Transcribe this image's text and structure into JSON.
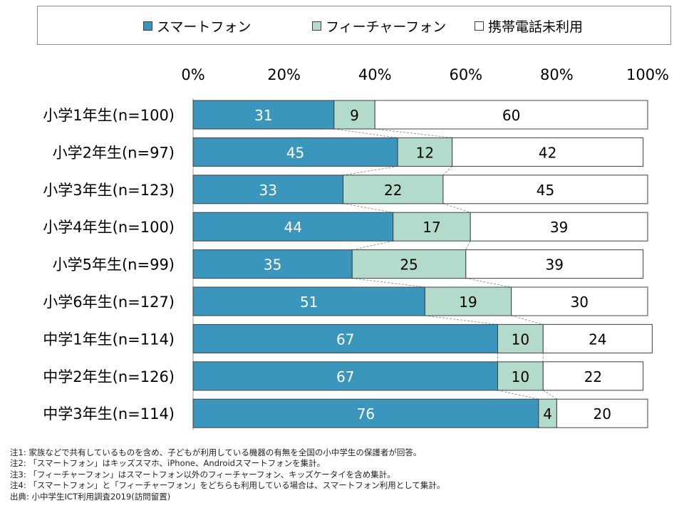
{
  "chart_data": {
    "type": "bar",
    "orientation": "horizontal",
    "stacked": true,
    "percent": true,
    "xlim": [
      0,
      100
    ],
    "xticks": [
      "0%",
      "20%",
      "40%",
      "60%",
      "80%",
      "100%"
    ],
    "categories": [
      "小学1年生(n=100)",
      "小学2年生(n=97)",
      "小学3年生(n=123)",
      "小学4年生(n=100)",
      "小学5年生(n=99)",
      "小学6年生(n=127)",
      "中学1年生(n=114)",
      "中学2年生(n=126)",
      "中学3年生(n=114)"
    ],
    "series": [
      {
        "name": "スマートフォン",
        "color": "#3a96bc",
        "label_color": "#ffffff",
        "values": [
          31,
          45,
          33,
          44,
          35,
          51,
          67,
          67,
          76
        ]
      },
      {
        "name": "フィーチャーフォン",
        "color": "#b2dbcc",
        "label_color": "#000000",
        "values": [
          9,
          12,
          22,
          17,
          25,
          19,
          10,
          10,
          4
        ]
      },
      {
        "name": "携帯電話未利用",
        "color": "#ffffff",
        "label_color": "#000000",
        "values": [
          60,
          42,
          45,
          39,
          39,
          30,
          24,
          22,
          20
        ]
      }
    ],
    "legend_position": "top",
    "grid": false,
    "series_connector_lines": true
  },
  "notes": [
    "注1: 家族などで共有しているものを含め、子どもが利用している機器の有無を全国の小中学生の保護者が回答。",
    "注2: 「スマートフォン」はキッズスマホ、iPhone、Androidスマートフォンを集計。",
    "注3: 「フィーチャーフォン」はスマートフォン以外のフィーチャーフォン、キッズケータイを含め集計。",
    "注4: 「スマートフォン」と「フィーチャーフォン」をどちらも利用している場合は、スマートフォン利用として集計。",
    "出典: 小中学生ICT利用調査2019(訪問留置)"
  ]
}
